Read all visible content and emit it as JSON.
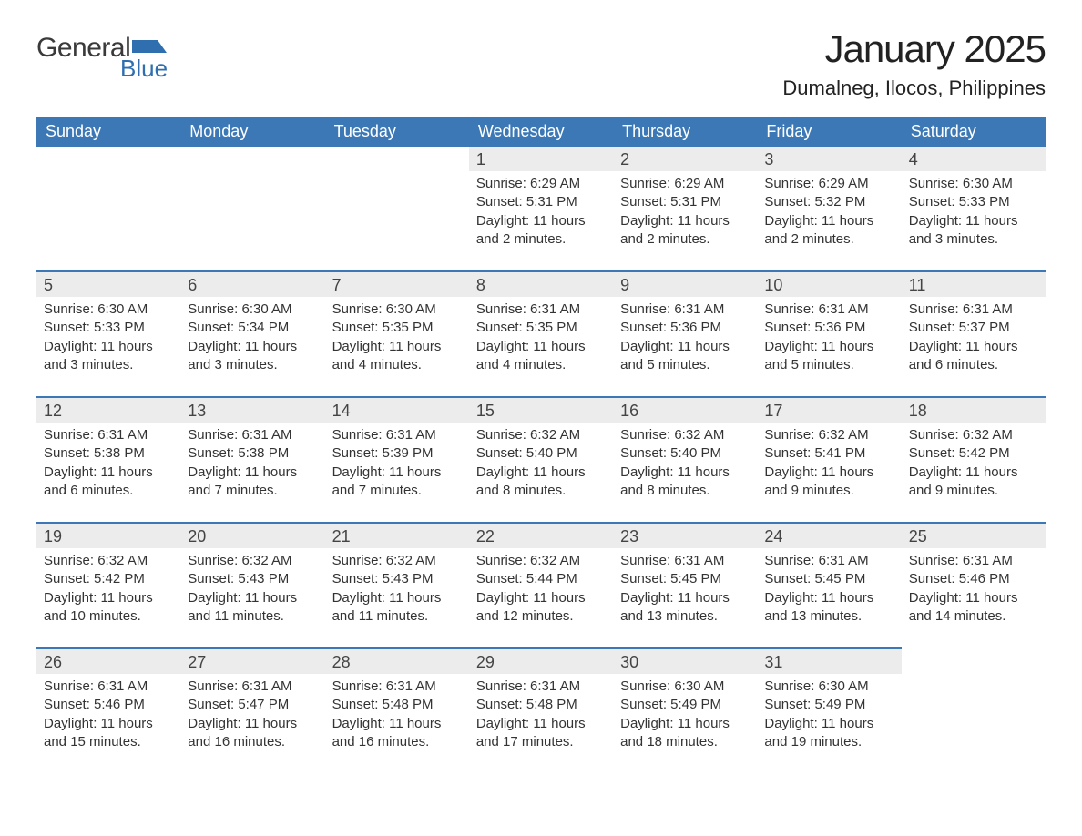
{
  "brand": {
    "word1": "General",
    "word2": "Blue",
    "logo_color": "#2f6fb0",
    "text1_color": "#3a3a3a"
  },
  "title": "January 2025",
  "location": "Dumalneg, Ilocos, Philippines",
  "colors": {
    "header_bg": "#3b78b5",
    "header_text": "#ffffff",
    "row_border": "#3b78b5",
    "daynum_bg": "#ececec",
    "body_text": "#333333",
    "page_bg": "#ffffff"
  },
  "fonts": {
    "title_size": 42,
    "location_size": 22,
    "dow_size": 18,
    "daynum_size": 18,
    "detail_size": 15
  },
  "days_of_week": [
    "Sunday",
    "Monday",
    "Tuesday",
    "Wednesday",
    "Thursday",
    "Friday",
    "Saturday"
  ],
  "weeks": [
    [
      null,
      null,
      null,
      {
        "n": "1",
        "sunrise": "6:29 AM",
        "sunset": "5:31 PM",
        "daylight": "11 hours and 2 minutes."
      },
      {
        "n": "2",
        "sunrise": "6:29 AM",
        "sunset": "5:31 PM",
        "daylight": "11 hours and 2 minutes."
      },
      {
        "n": "3",
        "sunrise": "6:29 AM",
        "sunset": "5:32 PM",
        "daylight": "11 hours and 2 minutes."
      },
      {
        "n": "4",
        "sunrise": "6:30 AM",
        "sunset": "5:33 PM",
        "daylight": "11 hours and 3 minutes."
      }
    ],
    [
      {
        "n": "5",
        "sunrise": "6:30 AM",
        "sunset": "5:33 PM",
        "daylight": "11 hours and 3 minutes."
      },
      {
        "n": "6",
        "sunrise": "6:30 AM",
        "sunset": "5:34 PM",
        "daylight": "11 hours and 3 minutes."
      },
      {
        "n": "7",
        "sunrise": "6:30 AM",
        "sunset": "5:35 PM",
        "daylight": "11 hours and 4 minutes."
      },
      {
        "n": "8",
        "sunrise": "6:31 AM",
        "sunset": "5:35 PM",
        "daylight": "11 hours and 4 minutes."
      },
      {
        "n": "9",
        "sunrise": "6:31 AM",
        "sunset": "5:36 PM",
        "daylight": "11 hours and 5 minutes."
      },
      {
        "n": "10",
        "sunrise": "6:31 AM",
        "sunset": "5:36 PM",
        "daylight": "11 hours and 5 minutes."
      },
      {
        "n": "11",
        "sunrise": "6:31 AM",
        "sunset": "5:37 PM",
        "daylight": "11 hours and 6 minutes."
      }
    ],
    [
      {
        "n": "12",
        "sunrise": "6:31 AM",
        "sunset": "5:38 PM",
        "daylight": "11 hours and 6 minutes."
      },
      {
        "n": "13",
        "sunrise": "6:31 AM",
        "sunset": "5:38 PM",
        "daylight": "11 hours and 7 minutes."
      },
      {
        "n": "14",
        "sunrise": "6:31 AM",
        "sunset": "5:39 PM",
        "daylight": "11 hours and 7 minutes."
      },
      {
        "n": "15",
        "sunrise": "6:32 AM",
        "sunset": "5:40 PM",
        "daylight": "11 hours and 8 minutes."
      },
      {
        "n": "16",
        "sunrise": "6:32 AM",
        "sunset": "5:40 PM",
        "daylight": "11 hours and 8 minutes."
      },
      {
        "n": "17",
        "sunrise": "6:32 AM",
        "sunset": "5:41 PM",
        "daylight": "11 hours and 9 minutes."
      },
      {
        "n": "18",
        "sunrise": "6:32 AM",
        "sunset": "5:42 PM",
        "daylight": "11 hours and 9 minutes."
      }
    ],
    [
      {
        "n": "19",
        "sunrise": "6:32 AM",
        "sunset": "5:42 PM",
        "daylight": "11 hours and 10 minutes."
      },
      {
        "n": "20",
        "sunrise": "6:32 AM",
        "sunset": "5:43 PM",
        "daylight": "11 hours and 11 minutes."
      },
      {
        "n": "21",
        "sunrise": "6:32 AM",
        "sunset": "5:43 PM",
        "daylight": "11 hours and 11 minutes."
      },
      {
        "n": "22",
        "sunrise": "6:32 AM",
        "sunset": "5:44 PM",
        "daylight": "11 hours and 12 minutes."
      },
      {
        "n": "23",
        "sunrise": "6:31 AM",
        "sunset": "5:45 PM",
        "daylight": "11 hours and 13 minutes."
      },
      {
        "n": "24",
        "sunrise": "6:31 AM",
        "sunset": "5:45 PM",
        "daylight": "11 hours and 13 minutes."
      },
      {
        "n": "25",
        "sunrise": "6:31 AM",
        "sunset": "5:46 PM",
        "daylight": "11 hours and 14 minutes."
      }
    ],
    [
      {
        "n": "26",
        "sunrise": "6:31 AM",
        "sunset": "5:46 PM",
        "daylight": "11 hours and 15 minutes."
      },
      {
        "n": "27",
        "sunrise": "6:31 AM",
        "sunset": "5:47 PM",
        "daylight": "11 hours and 16 minutes."
      },
      {
        "n": "28",
        "sunrise": "6:31 AM",
        "sunset": "5:48 PM",
        "daylight": "11 hours and 16 minutes."
      },
      {
        "n": "29",
        "sunrise": "6:31 AM",
        "sunset": "5:48 PM",
        "daylight": "11 hours and 17 minutes."
      },
      {
        "n": "30",
        "sunrise": "6:30 AM",
        "sunset": "5:49 PM",
        "daylight": "11 hours and 18 minutes."
      },
      {
        "n": "31",
        "sunrise": "6:30 AM",
        "sunset": "5:49 PM",
        "daylight": "11 hours and 19 minutes."
      },
      null
    ]
  ],
  "labels": {
    "sunrise": "Sunrise: ",
    "sunset": "Sunset: ",
    "daylight": "Daylight: "
  }
}
